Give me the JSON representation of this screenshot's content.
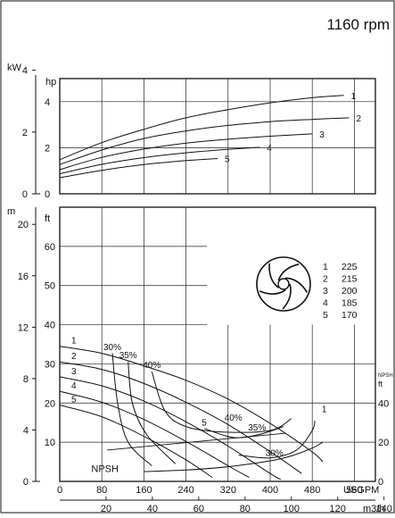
{
  "header": {
    "speed_label": "1160 rpm"
  },
  "chart_data": [
    {
      "type": "line",
      "panel": "power",
      "title": "",
      "xlabel": "USGPM",
      "x2label": "m3/h",
      "ylabel_left": "kW",
      "ylabel_right": "hp",
      "xlim": [
        0,
        600
      ],
      "ylim_hp": [
        0,
        5
      ],
      "ylim_kw": [
        0,
        3.73
      ],
      "x_ticks": [],
      "x2_ticks": [],
      "hp_ticks": [
        0,
        2,
        4
      ],
      "kw_ticks": [
        0,
        2,
        4
      ],
      "grid": true,
      "series": [
        {
          "name": "1",
          "x": [
            0,
            80,
            160,
            240,
            320,
            400,
            480,
            540
          ],
          "y": [
            1.48,
            2.22,
            2.8,
            3.3,
            3.65,
            3.95,
            4.17,
            4.27
          ]
        },
        {
          "name": "2",
          "x": [
            0,
            80,
            160,
            240,
            320,
            400,
            480,
            550
          ],
          "y": [
            1.27,
            1.9,
            2.4,
            2.73,
            2.97,
            3.13,
            3.23,
            3.3
          ]
        },
        {
          "name": "3",
          "x": [
            0,
            80,
            160,
            240,
            320,
            400,
            480
          ],
          "y": [
            1.05,
            1.58,
            1.94,
            2.2,
            2.37,
            2.5,
            2.6
          ]
        },
        {
          "name": "4",
          "x": [
            0,
            80,
            160,
            240,
            320,
            380
          ],
          "y": [
            0.87,
            1.28,
            1.57,
            1.78,
            1.93,
            2.02
          ]
        },
        {
          "name": "5",
          "x": [
            0,
            80,
            160,
            240,
            300
          ],
          "y": [
            0.7,
            1.02,
            1.27,
            1.44,
            1.53
          ]
        }
      ]
    },
    {
      "type": "line",
      "panel": "head",
      "title": "",
      "xlabel": "USGPM",
      "x2label": "m3/h",
      "ylabel_left": "m",
      "ylabel_right": "ft",
      "npsh_axis_label": "NPSH",
      "npsh_axis_unit": "ft",
      "xlim": [
        0,
        600
      ],
      "ylim_ft": [
        0,
        70
      ],
      "x_ticks": [
        0,
        80,
        160,
        240,
        320,
        400,
        480,
        560
      ],
      "x2_ticks": [
        20,
        40,
        60,
        80,
        100,
        120,
        140
      ],
      "ft_ticks": [
        10,
        20,
        30,
        40,
        50,
        60
      ],
      "m_ticks": [
        0,
        4,
        8,
        12,
        16,
        20
      ],
      "npsh_ticks": [
        0,
        20,
        40
      ],
      "grid": true,
      "series": [
        {
          "name": "1",
          "x": [
            0,
            80,
            160,
            240,
            320,
            400,
            480,
            500
          ],
          "y": [
            34.5,
            32.7,
            29.5,
            25.8,
            21.0,
            14.8,
            7.5,
            5.0
          ]
        },
        {
          "name": "2",
          "x": [
            0,
            80,
            160,
            240,
            320,
            400,
            460
          ],
          "y": [
            30.5,
            28.6,
            25.0,
            20.2,
            14.5,
            7.6,
            2.0
          ]
        },
        {
          "name": "3",
          "x": [
            0,
            80,
            160,
            240,
            320,
            400,
            420
          ],
          "y": [
            26.7,
            24.4,
            20.5,
            15.2,
            9.0,
            2.0,
            0.5
          ]
        },
        {
          "name": "4",
          "x": [
            0,
            80,
            160,
            240,
            320,
            360
          ],
          "y": [
            23.0,
            20.2,
            15.8,
            10.2,
            4.0,
            1.0
          ]
        },
        {
          "name": "5",
          "x": [
            0,
            80,
            160,
            240,
            290
          ],
          "y": [
            19.5,
            16.5,
            11.5,
            5.5,
            1.0
          ]
        }
      ],
      "efficiency_curves": [
        {
          "label": "30%",
          "x": [
            100,
            110,
            130,
            175
          ],
          "y": [
            32.7,
            20,
            10,
            4.0
          ]
        },
        {
          "label": "35%",
          "x": [
            130,
            138,
            165,
            220
          ],
          "y": [
            30.5,
            20,
            12,
            4.5
          ]
        },
        {
          "label": "40%",
          "x": [
            175,
            200,
            240,
            310,
            400,
            440
          ],
          "y": [
            28.0,
            18.0,
            14.0,
            12.6,
            13.0,
            16.0
          ]
        },
        {
          "label": "35%",
          "x": [
            275,
            330,
            380,
            425
          ],
          "y": [
            13.5,
            11.2,
            12.0,
            14.0
          ]
        },
        {
          "label": "30%",
          "x": [
            340,
            400,
            450,
            480,
            485
          ],
          "y": [
            6.7,
            6.0,
            8.0,
            13.0,
            15.5
          ]
        }
      ],
      "npsh_curve": {
        "label": "NPSH",
        "x": [
          160,
          240,
          320,
          400,
          440,
          480,
          500
        ],
        "y": [
          5.0,
          5.8,
          7.5,
          10.5,
          13.0,
          17.0,
          20.0
        ],
        "scale": "NPSH ft"
      },
      "annotations": {
        "efficiency_labels": [
          "30%",
          "35%",
          "40%",
          "40%",
          "35%",
          "30%"
        ],
        "curve_number_labels": [
          "1",
          "2",
          "3",
          "4",
          "5",
          "5",
          "1"
        ]
      }
    }
  ],
  "impeller_legend": {
    "items": [
      {
        "num": "1",
        "diameter": "225"
      },
      {
        "num": "2",
        "diameter": "215"
      },
      {
        "num": "3",
        "diameter": "200"
      },
      {
        "num": "4",
        "diameter": "185"
      },
      {
        "num": "5",
        "diameter": "170"
      }
    ]
  }
}
